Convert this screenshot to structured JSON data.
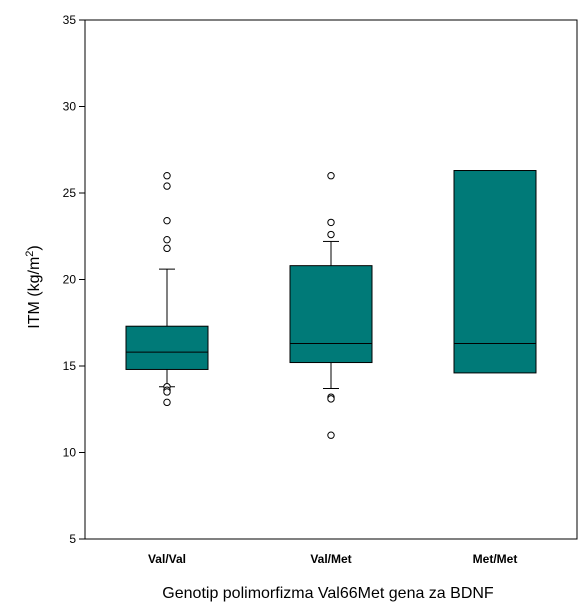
{
  "chart_data": {
    "type": "box",
    "xlabel": "Genotip polimorfizma Val66Met gena za BDNF",
    "ylabel": {
      "main": "ITM (kg/m",
      "sup": "2",
      "tail": ")"
    },
    "ylim": [
      5,
      35
    ],
    "yticks": [
      5,
      10,
      15,
      20,
      25,
      30,
      35
    ],
    "grid": false,
    "box_color": "#007a78",
    "categories": [
      "Val/Val",
      "Val/Met",
      "Met/Met"
    ],
    "boxes": [
      {
        "category": "Val/Val",
        "q1": 14.8,
        "median": 15.8,
        "q3": 17.3,
        "whisker_low": 13.8,
        "whisker_high": 20.6,
        "outliers": [
          26.0,
          25.4,
          23.4,
          22.3,
          21.8,
          13.8,
          13.6,
          13.5,
          12.9
        ]
      },
      {
        "category": "Val/Met",
        "q1": 15.2,
        "median": 16.3,
        "q3": 20.8,
        "whisker_low": 13.7,
        "whisker_high": 22.2,
        "outliers": [
          26.0,
          23.3,
          22.6,
          13.2,
          13.1,
          11.0
        ]
      },
      {
        "category": "Met/Met",
        "q1": 14.6,
        "median": 16.3,
        "q3": 26.3,
        "whisker_low": null,
        "whisker_high": null,
        "outliers": []
      }
    ]
  }
}
